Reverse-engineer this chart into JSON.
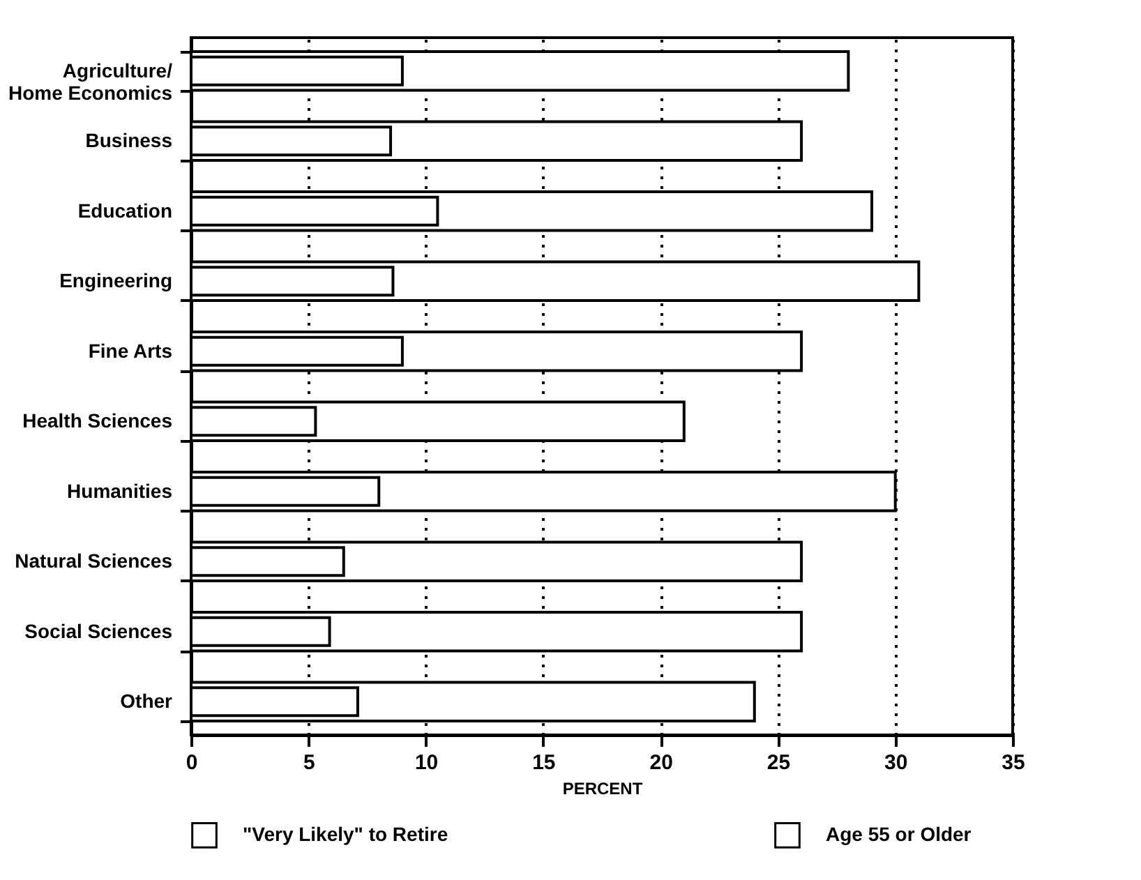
{
  "chart_data": {
    "type": "bar",
    "orientation": "horizontal",
    "xlabel": "PERCENT",
    "categories": [
      "Agriculture/ Home Economics",
      "Business",
      "Education",
      "Engineering",
      "Fine Arts",
      "Health Sciences",
      "Humanities",
      "Natural Sciences",
      "Social Sciences",
      "Other"
    ],
    "series": [
      {
        "name": "\"Very Likely\" to Retire",
        "color": "#ffffff",
        "values": [
          9,
          8.5,
          10.5,
          8.6,
          9,
          5.3,
          8,
          6.5,
          5.9,
          7.1
        ]
      },
      {
        "name": "Age 55 or Older",
        "color": "#ffffff",
        "values": [
          28,
          26,
          29,
          31,
          26,
          21,
          30,
          26,
          26,
          24
        ]
      }
    ],
    "xlim": [
      0,
      35
    ],
    "xticks": [
      0,
      5,
      10,
      15,
      20,
      25,
      30,
      35
    ],
    "grid": "x",
    "legend": "bottom"
  }
}
